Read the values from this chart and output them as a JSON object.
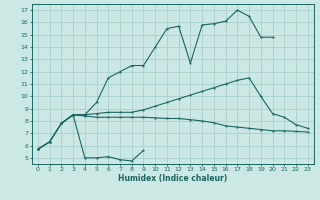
{
  "xlabel": "Humidex (Indice chaleur)",
  "xlim": [
    -0.5,
    23.5
  ],
  "ylim": [
    4.5,
    17.5
  ],
  "xticks": [
    0,
    1,
    2,
    3,
    4,
    5,
    6,
    7,
    8,
    9,
    10,
    11,
    12,
    13,
    14,
    15,
    16,
    17,
    18,
    19,
    20,
    21,
    22,
    23
  ],
  "yticks": [
    5,
    6,
    7,
    8,
    9,
    10,
    11,
    12,
    13,
    14,
    15,
    16,
    17
  ],
  "bg_color": "#cce8e5",
  "grid_color": "#aacfcc",
  "line_color": "#1a6660",
  "lines": [
    {
      "x": [
        0,
        1,
        2,
        3,
        4,
        5,
        6,
        7,
        8,
        9
      ],
      "y": [
        5.7,
        6.3,
        7.8,
        8.5,
        5.0,
        5.0,
        5.1,
        4.85,
        4.75,
        5.6
      ]
    },
    {
      "x": [
        0,
        1,
        2,
        3,
        4,
        5,
        6,
        7,
        8,
        9,
        10,
        11,
        12,
        13,
        14,
        15,
        16,
        17,
        18,
        19,
        20,
        21,
        22,
        23
      ],
      "y": [
        5.7,
        6.3,
        7.8,
        8.5,
        8.4,
        8.3,
        8.3,
        8.3,
        8.3,
        8.3,
        8.25,
        8.2,
        8.2,
        8.1,
        8.0,
        7.85,
        7.6,
        7.5,
        7.4,
        7.3,
        7.2,
        7.2,
        7.15,
        7.1
      ]
    },
    {
      "x": [
        0,
        1,
        2,
        3,
        4,
        5,
        6,
        7,
        8,
        9,
        10,
        11,
        12,
        13,
        14,
        15,
        16,
        17,
        18,
        19,
        20,
        21,
        22,
        23
      ],
      "y": [
        5.7,
        6.3,
        7.8,
        8.5,
        8.5,
        8.6,
        8.7,
        8.7,
        8.7,
        8.9,
        9.2,
        9.5,
        9.8,
        10.1,
        10.4,
        10.7,
        11.0,
        11.3,
        11.5,
        10.0,
        8.6,
        8.3,
        7.7,
        7.4
      ]
    },
    {
      "x": [
        2,
        3,
        4,
        5,
        6,
        7,
        8,
        9,
        10,
        11,
        12,
        13,
        14,
        15,
        16,
        17,
        18,
        19,
        20
      ],
      "y": [
        7.8,
        8.5,
        8.5,
        9.5,
        11.5,
        12.0,
        12.5,
        12.5,
        14.0,
        15.5,
        15.7,
        12.7,
        15.8,
        15.9,
        16.1,
        17.0,
        16.5,
        14.8,
        14.8
      ]
    }
  ]
}
